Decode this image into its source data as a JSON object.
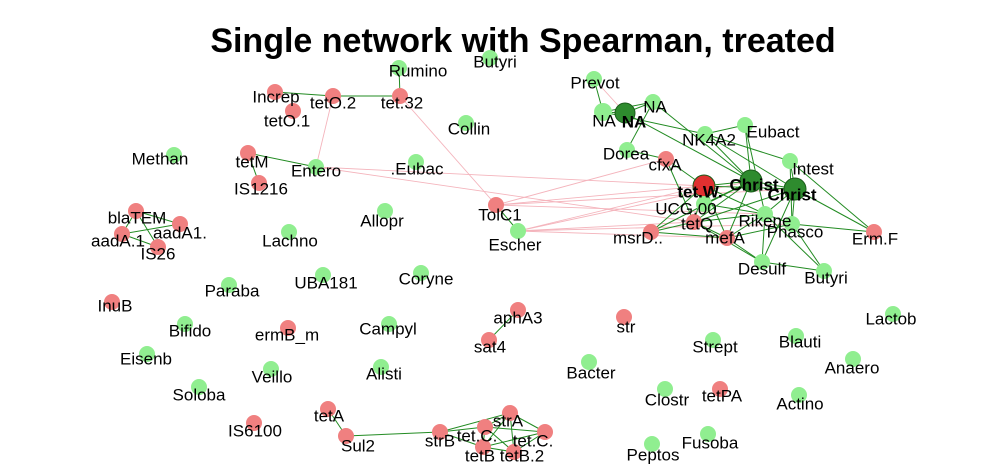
{
  "title": "Single network with Spearman, treated",
  "colors": {
    "antibiotic_resistance_gene": "#f08080",
    "taxon": "#90ee90",
    "hub_taxon": "#2e8b2e",
    "hub_gene": "#e03030",
    "positive_edge": "#228b22",
    "negative_edge": "#f4b4bc"
  },
  "nodes": [
    {
      "id": "Rumino",
      "label": "Rumino",
      "type": "taxon"
    },
    {
      "id": "Butyri1",
      "label": "Butyri",
      "type": "taxon"
    },
    {
      "id": "Increp",
      "label": "Increp",
      "type": "gene"
    },
    {
      "id": "tetO2",
      "label": "tetO.2",
      "type": "gene"
    },
    {
      "id": "tet32",
      "label": "tet.32",
      "type": "gene"
    },
    {
      "id": "tetO1",
      "label": "tetO.1",
      "type": "gene"
    },
    {
      "id": "Collin",
      "label": "Collin",
      "type": "taxon"
    },
    {
      "id": "Prevot",
      "label": "Prevot",
      "type": "taxon"
    },
    {
      "id": "NA1",
      "label": "NA",
      "type": "taxon"
    },
    {
      "id": "NA2",
      "label": "NA",
      "type": "hub_taxon",
      "bold": true
    },
    {
      "id": "NA3",
      "label": "NA",
      "type": "taxon"
    },
    {
      "id": "NK4A2",
      "label": "NK4A2",
      "type": "taxon"
    },
    {
      "id": "Eubact",
      "label": "Eubact",
      "type": "taxon"
    },
    {
      "id": "Dorea",
      "label": "Dorea",
      "type": "taxon"
    },
    {
      "id": "cfxA",
      "label": "cfxA",
      "type": "gene"
    },
    {
      "id": "Intest",
      "label": "Intest",
      "type": "taxon"
    },
    {
      "id": "Methan",
      "label": "Methan",
      "type": "taxon"
    },
    {
      "id": "tetM",
      "label": "tetM",
      "type": "gene"
    },
    {
      "id": "Entero",
      "label": "Entero",
      "type": "taxon"
    },
    {
      "id": "Eubac",
      "label": ".Eubac",
      "type": "taxon"
    },
    {
      "id": "IS1216",
      "label": "IS1216",
      "type": "gene"
    },
    {
      "id": "tetW",
      "label": "tet.W.",
      "type": "hub_gene",
      "bold": true
    },
    {
      "id": "Christ1",
      "label": "Christ",
      "type": "hub_taxon",
      "bold": true
    },
    {
      "id": "Christ2",
      "label": "Christ",
      "type": "hub_taxon",
      "bold": true
    },
    {
      "id": "blaTEM",
      "label": "blaTEM",
      "type": "gene"
    },
    {
      "id": "aadA1",
      "label": "aadA1.",
      "type": "gene"
    },
    {
      "id": "aadA",
      "label": "aadA.1",
      "type": "gene"
    },
    {
      "id": "IS26",
      "label": "IS26",
      "type": "gene"
    },
    {
      "id": "Allopr",
      "label": "Allopr",
      "type": "taxon"
    },
    {
      "id": "TolC1",
      "label": "TolC1",
      "type": "gene"
    },
    {
      "id": "UCG",
      "label": "UCG.00",
      "type": "taxon"
    },
    {
      "id": "tetQ",
      "label": "tetQ",
      "type": "gene"
    },
    {
      "id": "Rikene",
      "label": "Rikene",
      "type": "taxon"
    },
    {
      "id": "Lachno",
      "label": "Lachno",
      "type": "taxon"
    },
    {
      "id": "Escher",
      "label": "Escher",
      "type": "taxon"
    },
    {
      "id": "msrD",
      "label": "msrD..",
      "type": "gene"
    },
    {
      "id": "mefA",
      "label": "mefA",
      "type": "gene"
    },
    {
      "id": "Phasco",
      "label": "Phasco",
      "type": "taxon"
    },
    {
      "id": "ErmF",
      "label": "Erm.F",
      "type": "gene"
    },
    {
      "id": "UBA181",
      "label": "UBA181",
      "type": "taxon"
    },
    {
      "id": "Coryne",
      "label": "Coryne",
      "type": "taxon"
    },
    {
      "id": "Desulf",
      "label": "Desulf",
      "type": "taxon"
    },
    {
      "id": "Butyri2",
      "label": "Butyri",
      "type": "taxon"
    },
    {
      "id": "InuB",
      "label": "InuB",
      "type": "gene"
    },
    {
      "id": "Paraba",
      "label": "Paraba",
      "type": "taxon"
    },
    {
      "id": "aphA3",
      "label": "aphA3",
      "type": "gene"
    },
    {
      "id": "Lactob",
      "label": "Lactob",
      "type": "taxon"
    },
    {
      "id": "Bifido",
      "label": "Bifido",
      "type": "taxon"
    },
    {
      "id": "ermBm",
      "label": "ermB_m",
      "type": "gene"
    },
    {
      "id": "Campyl",
      "label": "Campyl",
      "type": "taxon"
    },
    {
      "id": "str",
      "label": "str",
      "type": "gene"
    },
    {
      "id": "sat4",
      "label": "sat4",
      "type": "gene"
    },
    {
      "id": "Strept",
      "label": "Strept",
      "type": "taxon"
    },
    {
      "id": "Blauti",
      "label": "Blauti",
      "type": "taxon"
    },
    {
      "id": "Eisenb",
      "label": "Eisenb",
      "type": "taxon"
    },
    {
      "id": "Anaero",
      "label": "Anaero",
      "type": "taxon"
    },
    {
      "id": "Veillo",
      "label": "Veillo",
      "type": "taxon"
    },
    {
      "id": "Alisti",
      "label": "Alisti",
      "type": "taxon"
    },
    {
      "id": "Bacter",
      "label": "Bacter",
      "type": "taxon"
    },
    {
      "id": "Soloba",
      "label": "Soloba",
      "type": "taxon"
    },
    {
      "id": "Clostr",
      "label": "Clostr",
      "type": "taxon"
    },
    {
      "id": "tetPA",
      "label": "tetPA",
      "type": "gene"
    },
    {
      "id": "Actino",
      "label": "Actino",
      "type": "taxon"
    },
    {
      "id": "tetA",
      "label": "tetA",
      "type": "gene"
    },
    {
      "id": "IS6100",
      "label": "IS6100",
      "type": "gene"
    },
    {
      "id": "strA",
      "label": "strA",
      "type": "gene"
    },
    {
      "id": "Sul2",
      "label": "Sul2",
      "type": "gene"
    },
    {
      "id": "strB",
      "label": "strB",
      "type": "gene"
    },
    {
      "id": "tetC1",
      "label": "tet.C.",
      "type": "gene"
    },
    {
      "id": "tetC2",
      "label": "tet.C.",
      "type": "gene"
    },
    {
      "id": "tetB1",
      "label": "tetB",
      "type": "gene"
    },
    {
      "id": "tetB2",
      "label": "tetB.2",
      "type": "gene"
    },
    {
      "id": "Peptos",
      "label": "Peptos",
      "type": "taxon"
    },
    {
      "id": "Fusoba",
      "label": "Fusoba",
      "type": "taxon"
    }
  ],
  "edges": [
    {
      "source": "tetO2",
      "target": "tet32",
      "sign": "positive"
    },
    {
      "source": "tetO2",
      "target": "Increp",
      "sign": "positive"
    },
    {
      "source": "tet32",
      "target": "Rumino",
      "sign": "positive"
    },
    {
      "source": "tetO2",
      "target": "Entero",
      "sign": "negative"
    },
    {
      "source": "tet32",
      "target": "TolC1",
      "sign": "negative"
    },
    {
      "source": "tetM",
      "target": "Entero",
      "sign": "positive"
    },
    {
      "source": "IS1216",
      "target": "tetM",
      "sign": "positive"
    },
    {
      "source": "blaTEM",
      "target": "aadA1",
      "sign": "positive"
    },
    {
      "source": "aadA1",
      "target": "aadA",
      "sign": "positive"
    },
    {
      "source": "aadA",
      "target": "IS26",
      "sign": "positive"
    },
    {
      "source": "blaTEM",
      "target": "IS26",
      "sign": "positive"
    },
    {
      "source": "blaTEM",
      "target": "aadA",
      "sign": "positive"
    },
    {
      "source": "Entero",
      "target": "tetW",
      "sign": "negative"
    },
    {
      "source": "Entero",
      "target": "tetQ",
      "sign": "negative"
    },
    {
      "source": "TolC1",
      "target": "tetW",
      "sign": "negative"
    },
    {
      "source": "TolC1",
      "target": "Escher",
      "sign": "positive"
    },
    {
      "source": "TolC1",
      "target": "cfxA",
      "sign": "negative"
    },
    {
      "source": "TolC1",
      "target": "Rikene",
      "sign": "negative"
    },
    {
      "source": "TolC1",
      "target": "Christ2",
      "sign": "negative"
    },
    {
      "source": "Escher",
      "target": "tetW",
      "sign": "negative"
    },
    {
      "source": "Escher",
      "target": "Christ1",
      "sign": "negative"
    },
    {
      "source": "Escher",
      "target": "tetQ",
      "sign": "negative"
    },
    {
      "source": "Escher",
      "target": "mefA",
      "sign": "negative"
    },
    {
      "source": "Escher",
      "target": "Phasco",
      "sign": "negative"
    },
    {
      "source": "NA1",
      "target": "NA2",
      "sign": "positive"
    },
    {
      "source": "NA1",
      "target": "NA3",
      "sign": "positive"
    },
    {
      "source": "NA2",
      "target": "NA3",
      "sign": "positive"
    },
    {
      "source": "Prevot",
      "target": "NA2",
      "sign": "negative"
    },
    {
      "source": "Prevot",
      "target": "NA1",
      "sign": "positive"
    },
    {
      "source": "NA2",
      "target": "Christ1",
      "sign": "positive"
    },
    {
      "source": "NA3",
      "target": "Christ1",
      "sign": "positive"
    },
    {
      "source": "NA1",
      "target": "NK4A2",
      "sign": "positive"
    },
    {
      "source": "NA3",
      "target": "Dorea",
      "sign": "positive"
    },
    {
      "source": "Dorea",
      "target": "cfxA",
      "sign": "positive"
    },
    {
      "source": "cfxA",
      "target": "tetW",
      "sign": "positive"
    },
    {
      "source": "cfxA",
      "target": "tetQ",
      "sign": "positive"
    },
    {
      "source": "NK4A2",
      "target": "Christ1",
      "sign": "positive"
    },
    {
      "source": "NK4A2",
      "target": "Eubact",
      "sign": "positive"
    },
    {
      "source": "NK4A2",
      "target": "Christ2",
      "sign": "positive"
    },
    {
      "source": "NK4A2",
      "target": "Intest",
      "sign": "positive"
    },
    {
      "source": "Eubact",
      "target": "Christ1",
      "sign": "positive"
    },
    {
      "source": "Eubact",
      "target": "Rikene",
      "sign": "positive"
    },
    {
      "source": "Intest",
      "target": "Christ2",
      "sign": "positive"
    },
    {
      "source": "Intest",
      "target": "Phasco",
      "sign": "positive"
    },
    {
      "source": "Intest",
      "target": "ErmF",
      "sign": "positive"
    },
    {
      "source": "tetW",
      "target": "Christ1",
      "sign": "positive"
    },
    {
      "source": "tetW",
      "target": "Christ2",
      "sign": "positive"
    },
    {
      "source": "Christ1",
      "target": "Christ2",
      "sign": "positive"
    },
    {
      "source": "tetW",
      "target": "tetQ",
      "sign": "positive"
    },
    {
      "source": "tetW",
      "target": "UCG",
      "sign": "positive"
    },
    {
      "source": "tetW",
      "target": "mefA",
      "sign": "positive"
    },
    {
      "source": "tetW",
      "target": "Rikene",
      "sign": "positive"
    },
    {
      "source": "tetQ",
      "target": "Christ1",
      "sign": "positive"
    },
    {
      "source": "tetQ",
      "target": "Christ2",
      "sign": "positive"
    },
    {
      "source": "tetQ",
      "target": "mefA",
      "sign": "positive"
    },
    {
      "source": "tetQ",
      "target": "msrD",
      "sign": "positive"
    },
    {
      "source": "tetQ",
      "target": "Rikene",
      "sign": "positive"
    },
    {
      "source": "tetQ",
      "target": "Desulf",
      "sign": "positive"
    },
    {
      "source": "msrD",
      "target": "Christ1",
      "sign": "positive"
    },
    {
      "source": "msrD",
      "target": "tetW",
      "sign": "positive"
    },
    {
      "source": "msrD",
      "target": "mefA",
      "sign": "positive"
    },
    {
      "source": "mefA",
      "target": "Christ1",
      "sign": "positive"
    },
    {
      "source": "mefA",
      "target": "Rikene",
      "sign": "positive"
    },
    {
      "source": "mefA",
      "target": "Phasco",
      "sign": "positive"
    },
    {
      "source": "mefA",
      "target": "Desulf",
      "sign": "positive"
    },
    {
      "source": "Rikene",
      "target": "Christ2",
      "sign": "positive"
    },
    {
      "source": "Rikene",
      "target": "Phasco",
      "sign": "positive"
    },
    {
      "source": "Rikene",
      "target": "Desulf",
      "sign": "positive"
    },
    {
      "source": "Rikene",
      "target": "Butyri2",
      "sign": "positive"
    },
    {
      "source": "Phasco",
      "target": "Christ2",
      "sign": "positive"
    },
    {
      "source": "Phasco",
      "target": "ErmF",
      "sign": "positive"
    },
    {
      "source": "Phasco",
      "target": "Butyri2",
      "sign": "positive"
    },
    {
      "source": "Desulf",
      "target": "Butyri2",
      "sign": "positive"
    },
    {
      "source": "Desulf",
      "target": "Christ2",
      "sign": "positive"
    },
    {
      "source": "UCG",
      "target": "Christ1",
      "sign": "positive"
    },
    {
      "source": "UCG",
      "target": "Rikene",
      "sign": "positive"
    },
    {
      "source": "Christ2",
      "target": "ErmF",
      "sign": "positive"
    },
    {
      "source": "aphA3",
      "target": "sat4",
      "sign": "positive"
    },
    {
      "source": "tetA",
      "target": "Sul2",
      "sign": "positive"
    },
    {
      "source": "Sul2",
      "target": "strB",
      "sign": "positive"
    },
    {
      "source": "strB",
      "target": "tetB1",
      "sign": "positive"
    },
    {
      "source": "strB",
      "target": "strA",
      "sign": "positive"
    },
    {
      "source": "strB",
      "target": "tetC1",
      "sign": "positive"
    },
    {
      "source": "strA",
      "target": "tetC1",
      "sign": "positive"
    },
    {
      "source": "strA",
      "target": "tetC2",
      "sign": "positive"
    },
    {
      "source": "strA",
      "target": "tetB1",
      "sign": "positive"
    },
    {
      "source": "strA",
      "target": "tetB2",
      "sign": "positive"
    },
    {
      "source": "tetC1",
      "target": "tetC2",
      "sign": "positive"
    },
    {
      "source": "tetC1",
      "target": "tetB1",
      "sign": "positive"
    },
    {
      "source": "tetC1",
      "target": "tetB2",
      "sign": "positive"
    },
    {
      "source": "tetC2",
      "target": "tetB1",
      "sign": "positive"
    },
    {
      "source": "tetC2",
      "target": "tetB2",
      "sign": "positive"
    },
    {
      "source": "tetB1",
      "target": "tetB2",
      "sign": "positive"
    }
  ]
}
